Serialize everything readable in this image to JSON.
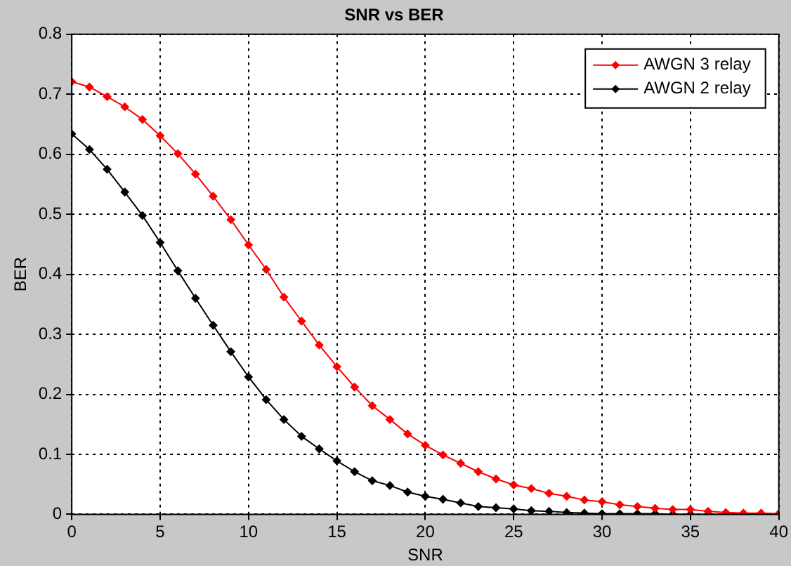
{
  "chart_data": {
    "type": "line",
    "title": "SNR vs BER",
    "xlabel": "SNR",
    "ylabel": "BER",
    "x": [
      0,
      1,
      2,
      3,
      4,
      5,
      6,
      7,
      8,
      9,
      10,
      11,
      12,
      13,
      14,
      15,
      16,
      17,
      18,
      19,
      20,
      21,
      22,
      23,
      24,
      25,
      26,
      27,
      28,
      29,
      30,
      31,
      32,
      33,
      34,
      35,
      36,
      37,
      38,
      39,
      40
    ],
    "series": [
      {
        "name": "AWGN 3 relay",
        "color": "#ff0000",
        "values": [
          0.721,
          0.712,
          0.696,
          0.679,
          0.658,
          0.631,
          0.601,
          0.567,
          0.53,
          0.491,
          0.449,
          0.408,
          0.362,
          0.322,
          0.282,
          0.246,
          0.212,
          0.181,
          0.158,
          0.134,
          0.115,
          0.099,
          0.085,
          0.071,
          0.059,
          0.049,
          0.043,
          0.035,
          0.03,
          0.024,
          0.021,
          0.016,
          0.013,
          0.01,
          0.008,
          0.008,
          0.005,
          0.003,
          0.002,
          0.002,
          0.001
        ]
      },
      {
        "name": "AWGN 2 relay",
        "color": "#000000",
        "values": [
          0.634,
          0.608,
          0.575,
          0.537,
          0.498,
          0.453,
          0.406,
          0.36,
          0.315,
          0.271,
          0.229,
          0.191,
          0.158,
          0.13,
          0.109,
          0.089,
          0.071,
          0.056,
          0.048,
          0.037,
          0.03,
          0.025,
          0.019,
          0.013,
          0.011,
          0.009,
          0.006,
          0.005,
          0.003,
          0.002,
          0.001,
          0.001,
          0.001,
          0.001,
          0,
          0,
          0,
          0,
          0,
          0,
          0
        ]
      }
    ],
    "xlim": [
      0,
      40
    ],
    "xticks": [
      0,
      5,
      10,
      15,
      20,
      25,
      30,
      35,
      40
    ],
    "ylim": [
      0,
      0.8
    ],
    "yticks": [
      0,
      0.1,
      0.2,
      0.3,
      0.4,
      0.5,
      0.6,
      0.7,
      0.8
    ],
    "grid": true,
    "legend": "top right",
    "marker": "diamond",
    "line_style": "solid"
  }
}
